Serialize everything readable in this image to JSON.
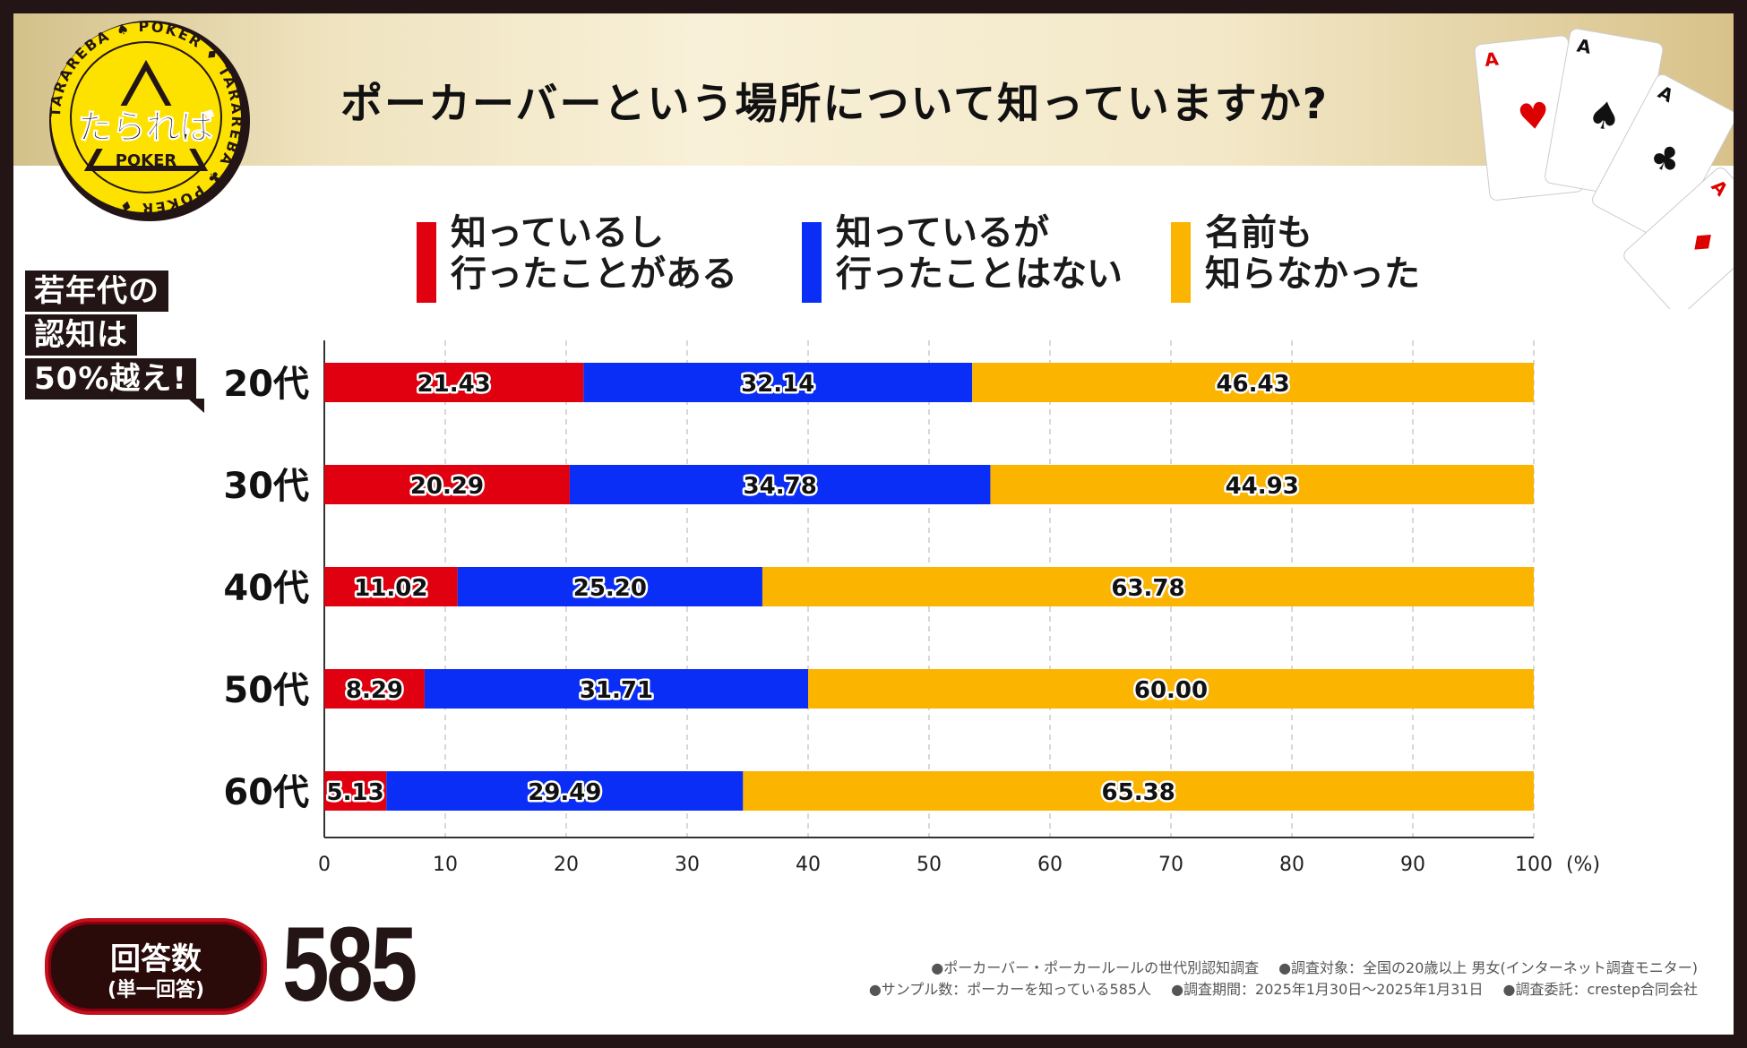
{
  "header": {
    "title": "ポーカーバーという場所について知っていますか?"
  },
  "logo": {
    "main_text": "たられば",
    "sub_text": "POKER",
    "ring_text": "TARAREBA ♠ POKER ♦ TARAREBA ♣ POKER ♦"
  },
  "legend": [
    {
      "line1": "知っているし",
      "line2": "行ったことがある",
      "color": "#e0000f"
    },
    {
      "line1": "知っているが",
      "line2": "行ったことはない",
      "color": "#0a2ef5"
    },
    {
      "line1": "名前も",
      "line2": "知らなかった",
      "color": "#fbb400"
    }
  ],
  "callout": {
    "lines": [
      "若年代の",
      "認知は",
      "50%越え!"
    ]
  },
  "chart_data": {
    "type": "bar",
    "orientation": "horizontal",
    "stacked": true,
    "categories": [
      "20代",
      "30代",
      "40代",
      "50代",
      "60代"
    ],
    "series": [
      {
        "name": "知っているし行ったことがある",
        "color": "#e0000f",
        "values": [
          21.43,
          20.29,
          11.02,
          8.29,
          5.13
        ]
      },
      {
        "name": "知っているが行ったことはない",
        "color": "#0a2ef5",
        "values": [
          32.14,
          34.78,
          25.2,
          31.71,
          29.49
        ]
      },
      {
        "name": "名前も知らなかった",
        "color": "#fbb400",
        "values": [
          46.43,
          44.93,
          63.78,
          60.0,
          65.38
        ]
      }
    ],
    "labels": [
      [
        "21.43",
        "32.14",
        "46.43"
      ],
      [
        "20.29",
        "34.78",
        "44.93"
      ],
      [
        "11.02",
        "25.20",
        "63.78"
      ],
      [
        "8.29",
        "31.71",
        "60.00"
      ],
      [
        "5.13",
        "29.49",
        "65.38"
      ]
    ],
    "xlim": [
      0,
      100
    ],
    "xticks": [
      0,
      10,
      20,
      30,
      40,
      50,
      60,
      70,
      80,
      90,
      100
    ],
    "xunit": "(%)",
    "grid": true
  },
  "footer": {
    "count_label": "回答数",
    "count_sub": "(単一回答)",
    "count_value": "585",
    "notes_line1": [
      "●ポーカーバー・ポーカールールの世代別認知調査",
      "●調査対象：全国の20歳以上 男女(インターネット調査モニター)"
    ],
    "notes_line2": [
      "●サンプル数：ポーカーを知っている585人",
      "●調査期間：2025年1月30日～2025年1月31日",
      "●調査委託：crestep合同会社"
    ]
  }
}
